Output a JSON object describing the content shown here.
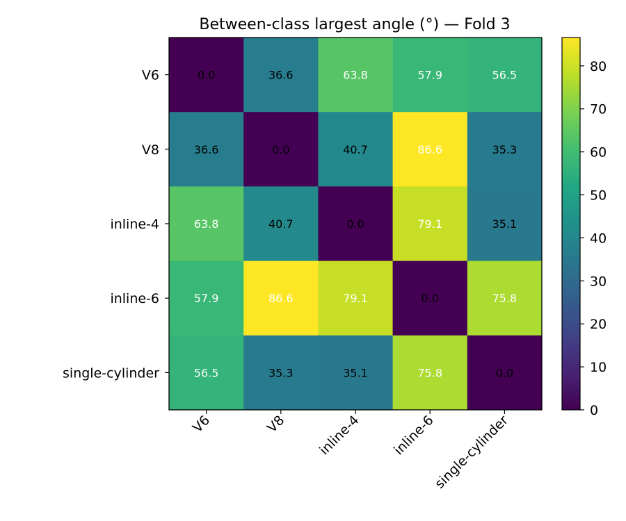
{
  "chart_data": {
    "type": "heatmap",
    "title": "Between-class largest angle (°) — Fold 3",
    "xlabel": "",
    "ylabel": "",
    "row_labels": [
      "V6",
      "V8",
      "inline-4",
      "inline-6",
      "single-cylinder"
    ],
    "col_labels": [
      "V6",
      "V8",
      "inline-4",
      "inline-6",
      "single-cylinder"
    ],
    "values": [
      [
        0.0,
        36.6,
        63.8,
        57.9,
        56.5
      ],
      [
        36.6,
        0.0,
        40.7,
        86.6,
        35.3
      ],
      [
        63.8,
        40.7,
        0.0,
        79.1,
        35.1
      ],
      [
        57.9,
        86.6,
        79.1,
        0.0,
        75.8
      ],
      [
        56.5,
        35.3,
        35.1,
        75.8,
        0.0
      ]
    ],
    "cell_labels": [
      [
        "0.0",
        "36.6",
        "63.8",
        "57.9",
        "56.5"
      ],
      [
        "36.6",
        "0.0",
        "40.7",
        "86.6",
        "35.3"
      ],
      [
        "63.8",
        "40.7",
        "0.0",
        "79.1",
        "35.1"
      ],
      [
        "57.9",
        "86.6",
        "79.1",
        "0.0",
        "75.8"
      ],
      [
        "56.5",
        "35.3",
        "35.1",
        "75.8",
        "0.0"
      ]
    ],
    "value_range": [
      0,
      86.6
    ],
    "colormap": "viridis",
    "colorbar": {
      "ticks": [
        0,
        10,
        20,
        30,
        40,
        50,
        60,
        70,
        80
      ],
      "tick_labels": [
        "0",
        "10",
        "20",
        "30",
        "40",
        "50",
        "60",
        "70",
        "80"
      ]
    },
    "annotation_colors": {
      "dark_text": "#000000",
      "light_text": "#ffffff"
    },
    "grid": false,
    "colorbar_placement": "right"
  }
}
